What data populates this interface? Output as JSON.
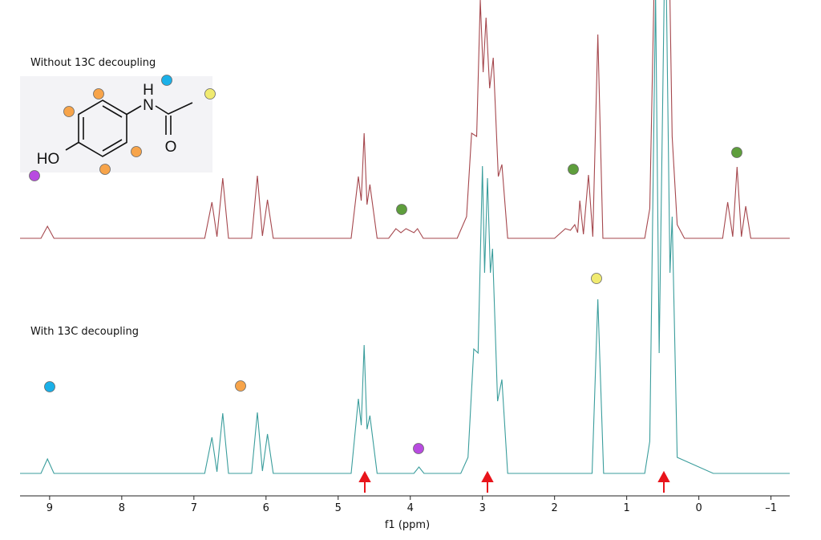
{
  "chart_data": {
    "type": "line",
    "x_label": "f1 (ppm)",
    "xlim": [
      9.41,
      -1.26
    ],
    "xticks": [
      9,
      8,
      7,
      6,
      5,
      4,
      3,
      2,
      1,
      0,
      {
        "value": -1,
        "label": "–1"
      }
    ],
    "ylim": [
      0,
      590
    ],
    "grid": false,
    "structure_labels": [
      "H",
      "N",
      "HO",
      "O"
    ],
    "series": [
      {
        "name": "Without 13C decoupling",
        "color": "#a5474d",
        "x": [
          9.41,
          9.12,
          9.03,
          8.94,
          6.85,
          6.75,
          6.68,
          6.6,
          6.52,
          6.2,
          6.12,
          6.05,
          5.98,
          5.9,
          4.82,
          4.72,
          4.68,
          4.64,
          4.6,
          4.56,
          4.46,
          4.3,
          4.2,
          4.13,
          4.06,
          3.95,
          3.9,
          3.82,
          3.35,
          3.22,
          3.15,
          3.08,
          3.03,
          2.99,
          2.95,
          2.9,
          2.85,
          2.78,
          2.73,
          2.65,
          2.0,
          1.85,
          1.78,
          1.72,
          1.68,
          1.65,
          1.6,
          1.53,
          1.47,
          1.4,
          1.33,
          0.75,
          0.68,
          0.6,
          0.55,
          0.48,
          0.42,
          0.37,
          0.3,
          0.2,
          -0.33,
          -0.4,
          -0.47,
          -0.53,
          -0.59,
          -0.65,
          -0.72,
          -1.26
        ],
        "values": [
          293,
          293,
          308,
          293,
          293,
          338,
          295,
          368,
          293,
          293,
          371,
          296,
          341,
          293,
          293,
          370,
          340,
          424,
          335,
          360,
          293,
          293,
          305,
          300,
          305,
          300,
          305,
          293,
          293,
          320,
          424,
          420,
          590,
          500,
          568,
          480,
          518,
          370,
          385,
          293,
          293,
          305,
          303,
          310,
          300,
          340,
          298,
          372,
          295,
          547,
          293,
          293,
          330,
          700,
          600,
          700,
          700,
          420,
          310,
          293,
          293,
          338,
          295,
          382,
          295,
          333,
          293,
          293
        ]
      },
      {
        "name": "With 13C decoupling",
        "color": "#3a9d9c",
        "x": [
          9.41,
          9.12,
          9.03,
          8.94,
          6.85,
          6.75,
          6.68,
          6.6,
          6.52,
          6.2,
          6.12,
          6.05,
          5.98,
          5.9,
          4.82,
          4.72,
          4.68,
          4.64,
          4.6,
          4.56,
          4.46,
          3.95,
          3.88,
          3.81,
          3.3,
          3.2,
          3.12,
          3.06,
          3.0,
          2.97,
          2.93,
          2.89,
          2.86,
          2.79,
          2.73,
          2.65,
          1.48,
          1.4,
          1.32,
          0.75,
          0.68,
          0.6,
          0.55,
          0.48,
          0.45,
          0.4,
          0.37,
          0.3,
          -0.2,
          -1.26
        ],
        "values": [
          0,
          0,
          18,
          0,
          0,
          45,
          2,
          75,
          0,
          0,
          76,
          3,
          49,
          0,
          0,
          93,
          60,
          160,
          55,
          72,
          0,
          0,
          8,
          0,
          0,
          20,
          155,
          150,
          383,
          250,
          368,
          250,
          280,
          90,
          117,
          0,
          0,
          217,
          0,
          0,
          40,
          600,
          150,
          600,
          600,
          250,
          320,
          20,
          0,
          0
        ]
      }
    ]
  }
}
